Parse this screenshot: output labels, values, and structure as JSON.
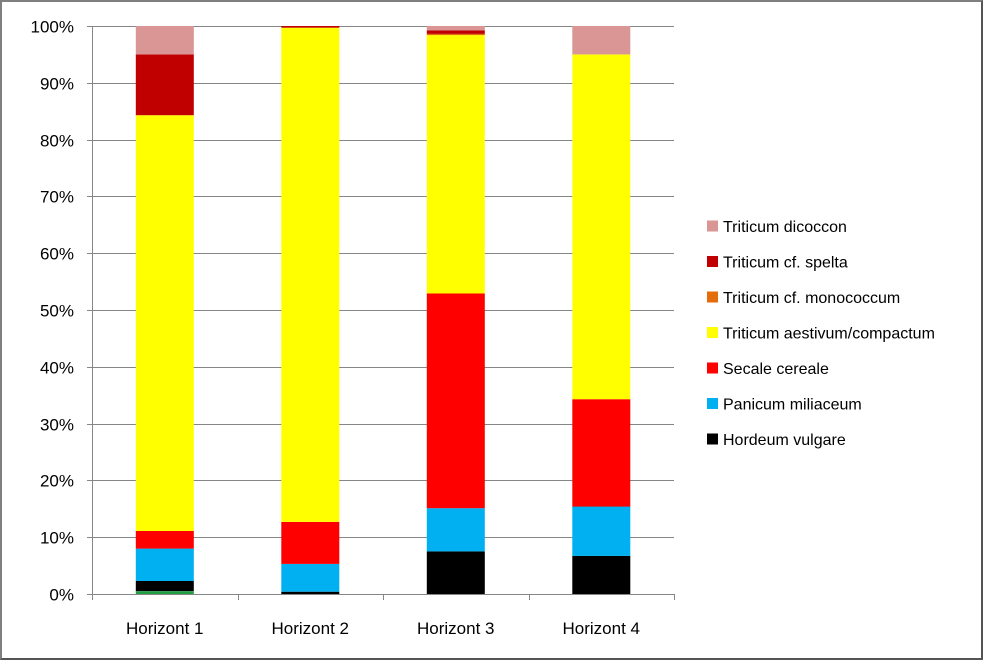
{
  "chart_data": {
    "type": "bar",
    "stacked": "percent",
    "categories": [
      "Horizont 1",
      "Horizont 2",
      "Horizont 3",
      "Horizont 4"
    ],
    "ylim": [
      0,
      100
    ],
    "yticks": [
      0,
      10,
      20,
      30,
      40,
      50,
      60,
      70,
      80,
      90,
      100
    ],
    "ytick_labels": [
      "0%",
      "10%",
      "20%",
      "30%",
      "40%",
      "50%",
      "60%",
      "70%",
      "80%",
      "90%",
      "100%"
    ],
    "grid": "horizontal major gridlines",
    "legend_position": "right",
    "series": [
      {
        "color": "#1f9f3f",
        "values": [
          0.5,
          0.0,
          0.0,
          0.0
        ]
      },
      {
        "name": "Hordeum vulgare",
        "color": "#000000",
        "values": [
          1.8,
          0.4,
          7.5,
          6.7
        ]
      },
      {
        "name": "Panicum miliaceum",
        "color": "#00b0f0",
        "values": [
          5.7,
          4.9,
          7.6,
          8.7
        ]
      },
      {
        "name": "Secale cereale",
        "color": "#ff0000",
        "values": [
          3.1,
          7.4,
          37.8,
          18.9
        ]
      },
      {
        "name": "Triticum aestivum/compactum",
        "color": "#ffff00",
        "values": [
          73.2,
          87.0,
          45.5,
          60.7
        ]
      },
      {
        "name": "Triticum cf. monococcum",
        "color": "#e46c0a",
        "values": [
          0.0,
          0.0,
          0.2,
          0.0
        ]
      },
      {
        "name": "Triticum cf. spelta",
        "color": "#c00000",
        "values": [
          10.7,
          0.3,
          0.6,
          0.0
        ]
      },
      {
        "name": "Triticum dicoccon",
        "color": "#d99694",
        "values": [
          5.0,
          0.0,
          0.8,
          5.0
        ]
      }
    ],
    "legend_order": [
      "Triticum dicoccon",
      "Triticum cf. spelta",
      "Triticum cf. monococcum",
      "Triticum aestivum/compactum",
      "Secale cereale",
      "Panicum miliaceum",
      "Hordeum vulgare"
    ]
  }
}
